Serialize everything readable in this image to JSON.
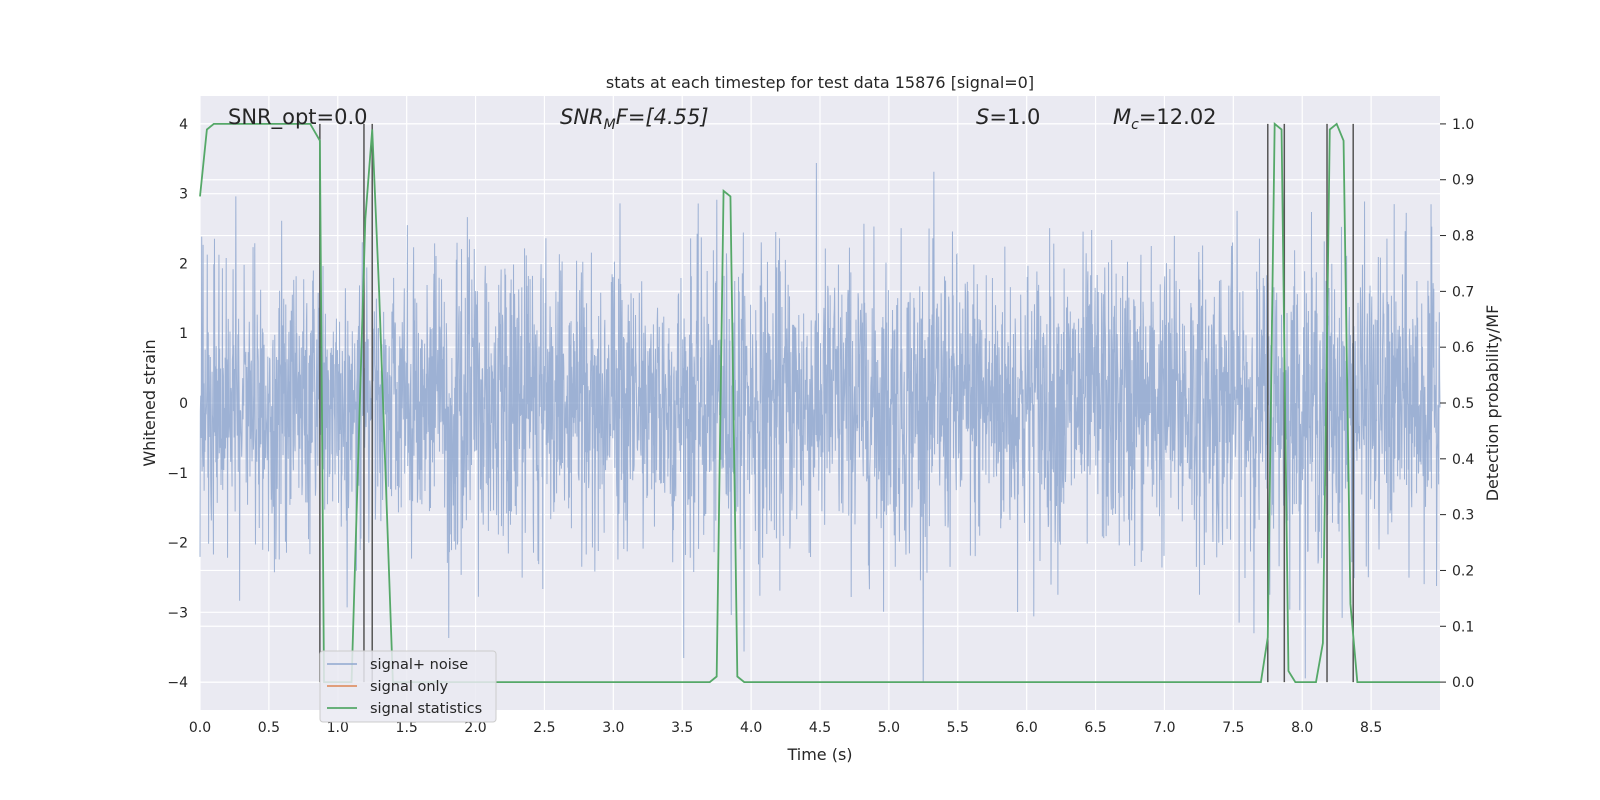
{
  "chart_data": {
    "type": "line",
    "title": "stats at each timestep for test data 15876 [signal=0]",
    "xlabel": "Time (s)",
    "ylabel_left": "Whitened strain",
    "ylabel_right": "Detection probability/MF",
    "xlim": [
      0.0,
      9.0
    ],
    "ylim_left": [
      -4.4,
      4.4
    ],
    "ylim_right": [
      -0.05,
      1.05
    ],
    "x_ticks": [
      "0.0",
      "0.5",
      "1.0",
      "1.5",
      "2.0",
      "2.5",
      "3.0",
      "3.5",
      "4.0",
      "4.5",
      "5.0",
      "5.5",
      "6.0",
      "6.5",
      "7.0",
      "7.5",
      "8.0",
      "8.5"
    ],
    "x_tick_values": [
      0.0,
      0.5,
      1.0,
      1.5,
      2.0,
      2.5,
      3.0,
      3.5,
      4.0,
      4.5,
      5.0,
      5.5,
      6.0,
      6.5,
      7.0,
      7.5,
      8.0,
      8.5
    ],
    "y_left_ticks": [
      "−4",
      "−3",
      "−2",
      "−1",
      "0",
      "1",
      "2",
      "3",
      "4"
    ],
    "y_left_tick_values": [
      -4,
      -3,
      -2,
      -1,
      0,
      1,
      2,
      3,
      4
    ],
    "y_right_ticks": [
      "0.0",
      "0.1",
      "0.2",
      "0.3",
      "0.4",
      "0.5",
      "0.6",
      "0.7",
      "0.8",
      "0.9",
      "1.0"
    ],
    "y_right_tick_values": [
      0.0,
      0.1,
      0.2,
      0.3,
      0.4,
      0.5,
      0.6,
      0.7,
      0.8,
      0.9,
      1.0
    ],
    "grid": true,
    "legend_placement": "lower-left",
    "annotations": {
      "snr_opt": "SNR_opt=0.0",
      "snr_mf_main": "SNR",
      "snr_mf_sub": "M",
      "snr_mf_rest": "F=[4.55]",
      "s_main": "S",
      "s_rest": "=1.0",
      "mc_main": "M",
      "mc_sub": "c",
      "mc_rest": "=12.02"
    },
    "series": [
      {
        "name": "signal+ noise",
        "color": "#8fa7cf",
        "axis": "left",
        "description_values": "whitened strain noise, approx. Gaussian, amplitude ~1.5 sigma band, extremes to +4/-4",
        "x_range": [
          0.0,
          9.0
        ],
        "typical_amplitude": 1.6
      },
      {
        "name": "signal only",
        "color": "#dd8452",
        "axis": "left",
        "x": [],
        "y": []
      },
      {
        "name": "signal statistics",
        "color": "#55a868",
        "axis": "right",
        "x": [
          0.0,
          0.05,
          0.1,
          0.2,
          0.3,
          0.4,
          0.5,
          0.6,
          0.7,
          0.8,
          0.87,
          0.9,
          1.0,
          1.1,
          1.2,
          1.25,
          1.3,
          1.4,
          1.5,
          2.0,
          3.0,
          3.7,
          3.75,
          3.8,
          3.85,
          3.9,
          3.95,
          4.0,
          5.0,
          6.0,
          7.0,
          7.5,
          7.7,
          7.75,
          7.8,
          7.85,
          7.9,
          7.95,
          8.0,
          8.1,
          8.15,
          8.2,
          8.25,
          8.3,
          8.35,
          8.4,
          8.5,
          8.6,
          8.7,
          9.0
        ],
        "y": [
          0.87,
          0.99,
          1.0,
          1.0,
          1.0,
          1.0,
          1.0,
          1.0,
          1.0,
          1.0,
          0.97,
          0.0,
          0.0,
          0.0,
          0.83,
          0.99,
          0.7,
          0.0,
          0.0,
          0.0,
          0.0,
          0.0,
          0.01,
          0.88,
          0.87,
          0.01,
          0.0,
          0.0,
          0.0,
          0.0,
          0.0,
          0.0,
          0.0,
          0.08,
          1.0,
          0.99,
          0.02,
          0.0,
          0.0,
          0.0,
          0.07,
          0.99,
          1.0,
          0.97,
          0.14,
          0.0,
          0.0,
          0.0,
          0.0,
          0.0
        ]
      }
    ],
    "vertical_markers": [
      0.87,
      1.19,
      1.25,
      7.75,
      7.87,
      8.18,
      8.37
    ],
    "marker_color": "#555555"
  },
  "legend": {
    "entries": [
      {
        "label": "signal+ noise",
        "color": "#8fa7cf"
      },
      {
        "label": "signal only",
        "color": "#dd8452"
      },
      {
        "label": "signal statistics",
        "color": "#55a868"
      }
    ]
  }
}
